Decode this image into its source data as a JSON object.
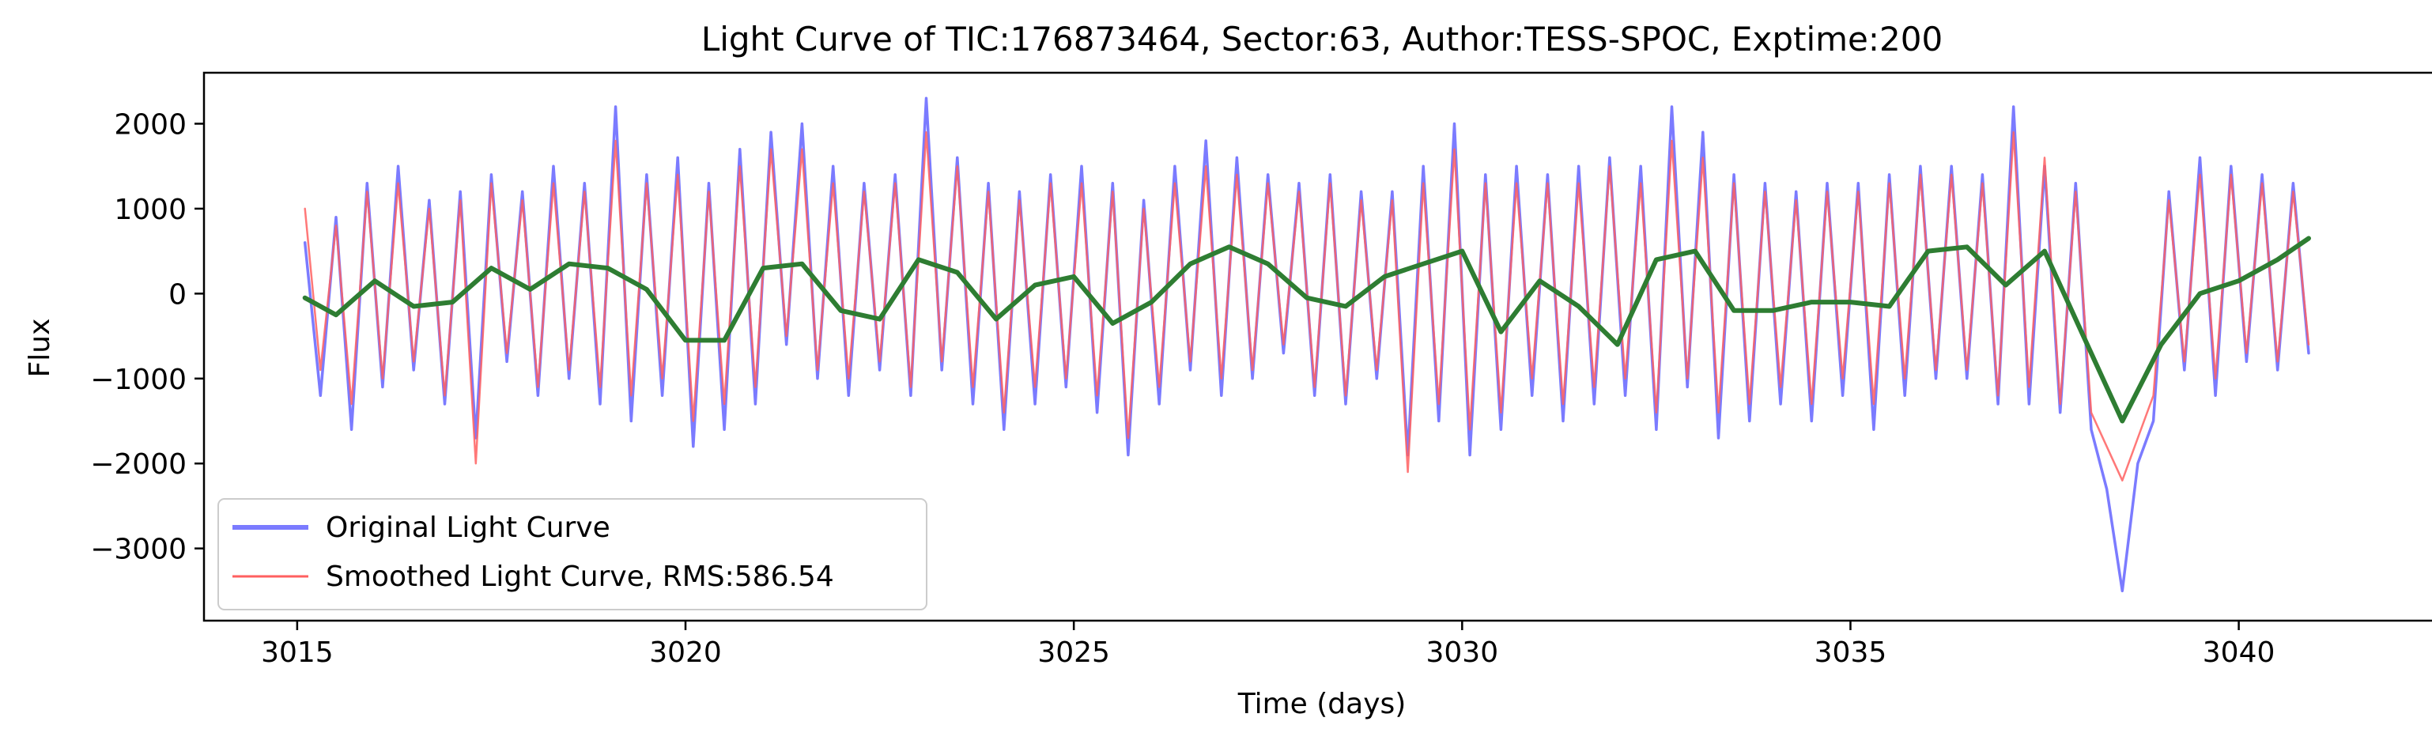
{
  "chart_data": {
    "type": "line",
    "title": "Light Curve of TIC:176873464, Sector:63, Author:TESS-SPOC, Exptime:200",
    "xlabel": "Time (days)",
    "ylabel": "Flux",
    "xlim": [
      3013.8,
      3042.6
    ],
    "ylim": [
      -3850,
      2600
    ],
    "x_ticks": [
      3015,
      3020,
      3025,
      3030,
      3035,
      3040
    ],
    "y_ticks": [
      -3000,
      -2000,
      -1000,
      0,
      1000,
      2000
    ],
    "x_tick_labels": [
      "3015",
      "3020",
      "3025",
      "3030",
      "3035",
      "3040"
    ],
    "y_tick_labels": [
      "−3000",
      "−2000",
      "−1000",
      "0",
      "1000",
      "2000"
    ],
    "grid": false,
    "legend_position": "lower-left",
    "legend": [
      "Original Light Curve",
      "Smoothed Light Curve, RMS:586.54"
    ],
    "x_range_data": [
      3015.1,
      3040.9
    ],
    "series": [
      {
        "name": "Original Light Curve",
        "color": "#7b7bff",
        "opacity": 1.0,
        "role": "noisy-original",
        "x": [
          3015.1,
          3015.3,
          3015.5,
          3015.7,
          3015.9,
          3016.1,
          3016.3,
          3016.5,
          3016.7,
          3016.9,
          3017.1,
          3017.3,
          3017.5,
          3017.7,
          3017.9,
          3018.1,
          3018.3,
          3018.5,
          3018.7,
          3018.9,
          3019.1,
          3019.3,
          3019.5,
          3019.7,
          3019.9,
          3020.1,
          3020.3,
          3020.5,
          3020.7,
          3020.9,
          3021.1,
          3021.3,
          3021.5,
          3021.7,
          3021.9,
          3022.1,
          3022.3,
          3022.5,
          3022.7,
          3022.9,
          3023.1,
          3023.3,
          3023.5,
          3023.7,
          3023.9,
          3024.1,
          3024.3,
          3024.5,
          3024.7,
          3024.9,
          3025.1,
          3025.3,
          3025.5,
          3025.7,
          3025.9,
          3026.1,
          3026.3,
          3026.5,
          3026.7,
          3026.9,
          3027.1,
          3027.3,
          3027.5,
          3027.7,
          3027.9,
          3028.1,
          3028.3,
          3028.5,
          3028.7,
          3028.9,
          3029.1,
          3029.3,
          3029.5,
          3029.7,
          3029.9,
          3030.1,
          3030.3,
          3030.5,
          3030.7,
          3030.9,
          3031.1,
          3031.3,
          3031.5,
          3031.7,
          3031.9,
          3032.1,
          3032.3,
          3032.5,
          3032.7,
          3032.9,
          3033.1,
          3033.3,
          3033.5,
          3033.7,
          3033.9,
          3034.1,
          3034.3,
          3034.5,
          3034.7,
          3034.9,
          3035.1,
          3035.3,
          3035.5,
          3035.7,
          3035.9,
          3036.1,
          3036.3,
          3036.5,
          3036.7,
          3036.9,
          3037.1,
          3037.3,
          3037.5,
          3037.7,
          3037.9,
          3038.1,
          3038.3,
          3038.5,
          3038.7,
          3038.9,
          3039.1,
          3039.3,
          3039.5,
          3039.7,
          3039.9,
          3040.1,
          3040.3,
          3040.5,
          3040.7,
          3040.9
        ],
        "y": [
          600,
          -1200,
          900,
          -1600,
          1300,
          -1100,
          1500,
          -900,
          1100,
          -1300,
          1200,
          -1700,
          1400,
          -800,
          1200,
          -1200,
          1500,
          -1000,
          1300,
          -1300,
          2200,
          -1500,
          1400,
          -1200,
          1600,
          -1800,
          1300,
          -1600,
          1700,
          -1300,
          1900,
          -600,
          2000,
          -1000,
          1500,
          -1200,
          1300,
          -900,
          1400,
          -1200,
          2300,
          -900,
          1600,
          -1300,
          1300,
          -1600,
          1200,
          -1300,
          1400,
          -1100,
          1500,
          -1400,
          1300,
          -1900,
          1100,
          -1300,
          1500,
          -900,
          1800,
          -1200,
          1600,
          -1000,
          1400,
          -700,
          1300,
          -1200,
          1400,
          -1300,
          1200,
          -1000,
          1200,
          -1900,
          1500,
          -1500,
          2000,
          -1900,
          1400,
          -1600,
          1500,
          -1200,
          1400,
          -1500,
          1500,
          -1300,
          1600,
          -1200,
          1500,
          -1600,
          2200,
          -1100,
          1900,
          -1700,
          1400,
          -1500,
          1300,
          -1300,
          1200,
          -1500,
          1300,
          -1200,
          1300,
          -1600,
          1400,
          -1200,
          1500,
          -1000,
          1500,
          -1000,
          1400,
          -1300,
          2200,
          -1300,
          1500,
          -1400,
          1300,
          -1600,
          -2300,
          -3500,
          -2000,
          -1500,
          1200,
          -900,
          1600,
          -1200,
          1500,
          -800,
          1400,
          -900,
          1300,
          -700
        ]
      },
      {
        "name": "Smoothed Light Curve, RMS:586.54",
        "color": "#ff6060",
        "opacity": 0.85,
        "role": "noisy-smoothed",
        "x": [
          3015.1,
          3015.3,
          3015.5,
          3015.7,
          3015.9,
          3016.1,
          3016.3,
          3016.5,
          3016.7,
          3016.9,
          3017.1,
          3017.3,
          3017.5,
          3017.7,
          3017.9,
          3018.1,
          3018.3,
          3018.5,
          3018.7,
          3018.9,
          3019.1,
          3019.3,
          3019.5,
          3019.7,
          3019.9,
          3020.1,
          3020.3,
          3020.5,
          3020.7,
          3020.9,
          3021.1,
          3021.3,
          3021.5,
          3021.7,
          3021.9,
          3022.1,
          3022.3,
          3022.5,
          3022.7,
          3022.9,
          3023.1,
          3023.3,
          3023.5,
          3023.7,
          3023.9,
          3024.1,
          3024.3,
          3024.5,
          3024.7,
          3024.9,
          3025.1,
          3025.3,
          3025.5,
          3025.7,
          3025.9,
          3026.1,
          3026.3,
          3026.5,
          3026.7,
          3026.9,
          3027.1,
          3027.3,
          3027.5,
          3027.7,
          3027.9,
          3028.1,
          3028.3,
          3028.5,
          3028.7,
          3028.9,
          3029.1,
          3029.3,
          3029.5,
          3029.7,
          3029.9,
          3030.1,
          3030.3,
          3030.5,
          3030.7,
          3030.9,
          3031.1,
          3031.3,
          3031.5,
          3031.7,
          3031.9,
          3032.1,
          3032.3,
          3032.5,
          3032.7,
          3032.9,
          3033.1,
          3033.3,
          3033.5,
          3033.7,
          3033.9,
          3034.1,
          3034.3,
          3034.5,
          3034.7,
          3034.9,
          3035.1,
          3035.3,
          3035.5,
          3035.7,
          3035.9,
          3036.1,
          3036.3,
          3036.5,
          3036.7,
          3036.9,
          3037.1,
          3037.3,
          3037.5,
          3037.7,
          3037.9,
          3038.1,
          3038.3,
          3038.5,
          3038.7,
          3038.9,
          3039.1,
          3039.3,
          3039.5,
          3039.7,
          3039.9,
          3040.1,
          3040.3,
          3040.5,
          3040.7,
          3040.9
        ],
        "y": [
          1000,
          -900,
          800,
          -1300,
          1200,
          -1000,
          1300,
          -800,
          1000,
          -1200,
          1100,
          -2000,
          1300,
          -700,
          1100,
          -1100,
          1300,
          -900,
          1200,
          -1100,
          1800,
          -1200,
          1300,
          -1000,
          1400,
          -1500,
          1200,
          -1300,
          1500,
          -1100,
          1700,
          -500,
          1700,
          -900,
          1300,
          -1000,
          1200,
          -800,
          1300,
          -1100,
          1900,
          -800,
          1500,
          -1100,
          1200,
          -1400,
          1100,
          -1100,
          1300,
          -1000,
          1300,
          -1200,
          1200,
          -1700,
          1000,
          -1100,
          1300,
          -800,
          1500,
          -1000,
          1400,
          -900,
          1300,
          -600,
          1200,
          -1100,
          1300,
          -1200,
          1100,
          -900,
          1100,
          -2100,
          1300,
          -1300,
          1700,
          -1600,
          1300,
          -1400,
          1300,
          -1000,
          1300,
          -1300,
          1300,
          -1100,
          1500,
          -1000,
          1300,
          -1400,
          1800,
          -1000,
          1600,
          -1400,
          1300,
          -1300,
          1200,
          -1100,
          1100,
          -1300,
          1200,
          -1000,
          1200,
          -1300,
          1300,
          -1000,
          1400,
          -900,
          1400,
          -900,
          1300,
          -1200,
          1900,
          -1100,
          1600,
          -1300,
          1200,
          -1400,
          -1800,
          -2200,
          -1700,
          -1200,
          1100,
          -800,
          1400,
          -1000,
          1400,
          -700,
          1300,
          -800,
          1200,
          -600
        ]
      },
      {
        "name": "",
        "color": "#2e7d32",
        "role": "trend",
        "x": [
          3015.1,
          3015.5,
          3016.0,
          3016.5,
          3017.0,
          3017.5,
          3018.0,
          3018.5,
          3019.0,
          3019.5,
          3020.0,
          3020.5,
          3021.0,
          3021.5,
          3022.0,
          3022.5,
          3023.0,
          3023.5,
          3024.0,
          3024.5,
          3025.0,
          3025.5,
          3026.0,
          3026.5,
          3027.0,
          3027.5,
          3028.0,
          3028.5,
          3029.0,
          3029.5,
          3030.0,
          3030.5,
          3031.0,
          3031.5,
          3032.0,
          3032.5,
          3033.0,
          3033.5,
          3034.0,
          3034.5,
          3035.0,
          3035.5,
          3036.0,
          3036.5,
          3037.0,
          3037.5,
          3038.0,
          3038.5,
          3039.0,
          3039.5,
          3040.0,
          3040.5,
          3040.9
        ],
        "y": [
          -50,
          -250,
          150,
          -150,
          -100,
          300,
          50,
          350,
          300,
          50,
          -550,
          -550,
          300,
          350,
          -200,
          -300,
          400,
          250,
          -300,
          100,
          200,
          -350,
          -100,
          350,
          550,
          350,
          -50,
          -150,
          200,
          350,
          500,
          -450,
          150,
          -150,
          -600,
          400,
          500,
          -200,
          -200,
          -100,
          -100,
          -150,
          500,
          550,
          100,
          500,
          -500,
          -1500,
          -600,
          0,
          150,
          400,
          650
        ]
      }
    ]
  }
}
